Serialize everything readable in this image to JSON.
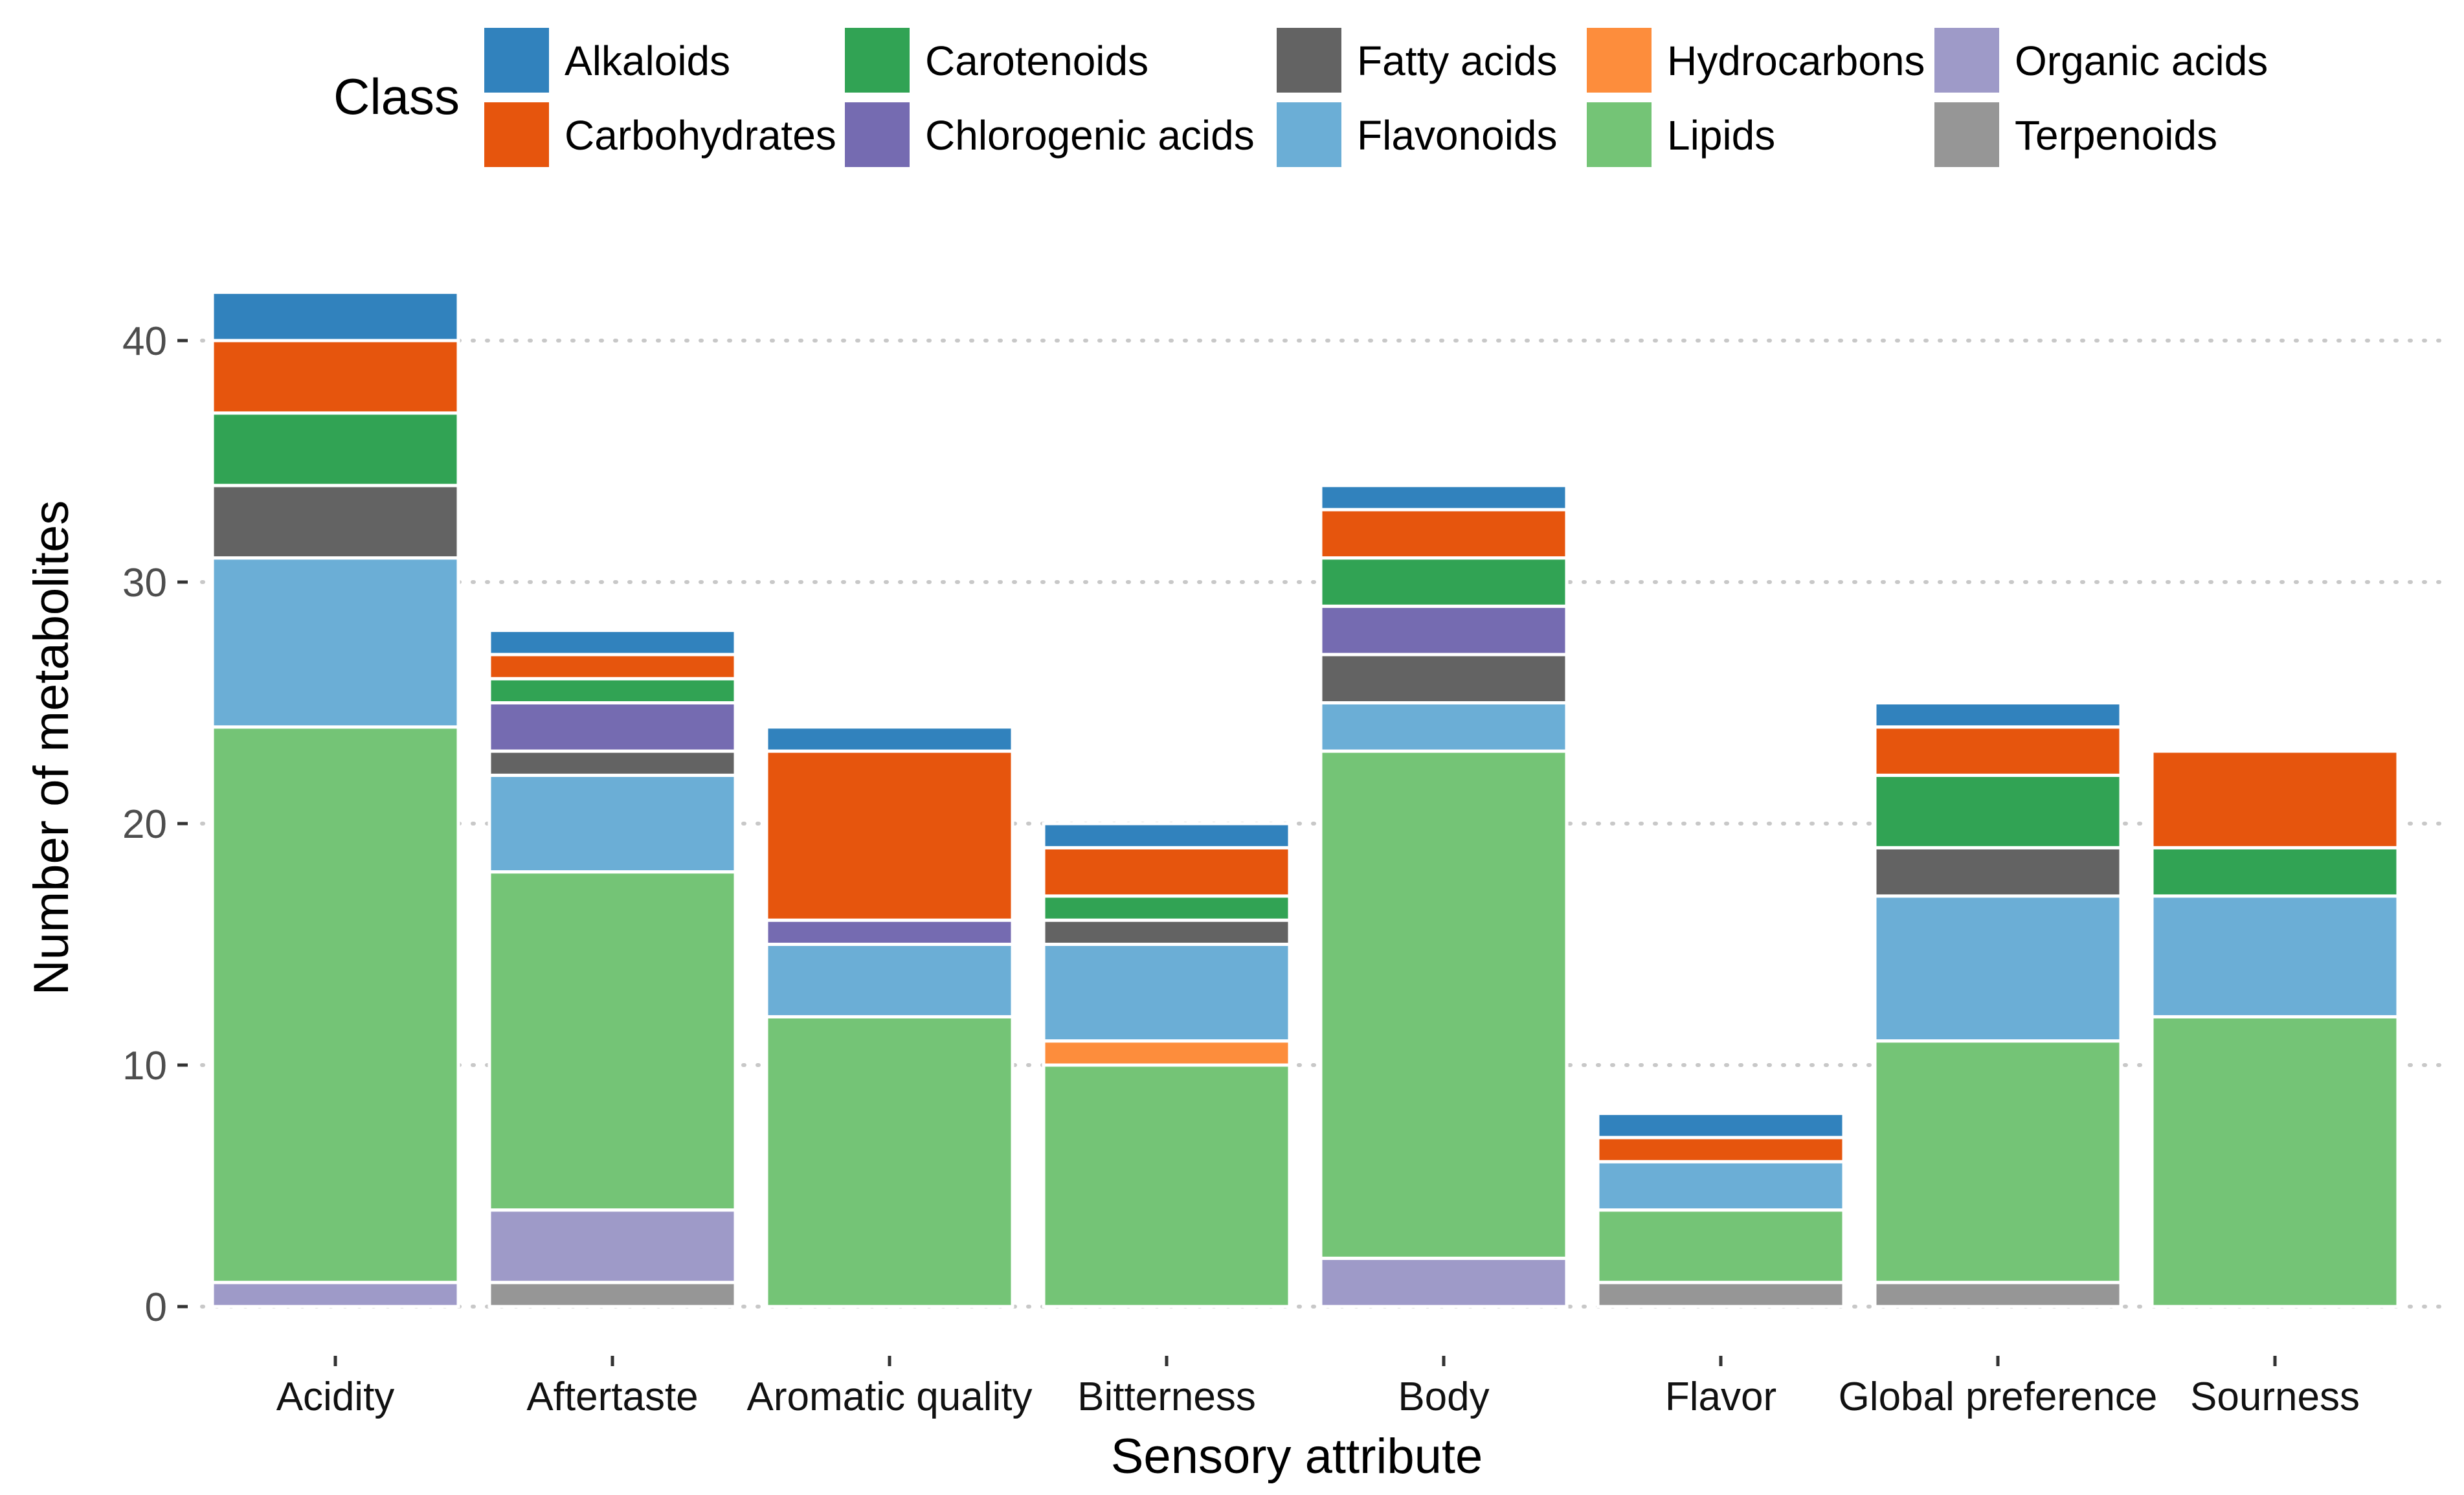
{
  "chart_data": {
    "type": "bar",
    "stacked": true,
    "title": "",
    "xlabel": "Sensory attribute",
    "ylabel": "Number of metabolites",
    "ylim": [
      0,
      42
    ],
    "yticks": [
      0,
      10,
      20,
      30,
      40
    ],
    "grid": "horizontal dotted",
    "legend": {
      "title": "Class",
      "placement": "top",
      "entries": [
        {
          "name": "Alkaloids",
          "color": "#3182bd"
        },
        {
          "name": "Carbohydrates",
          "color": "#e6550d"
        },
        {
          "name": "Carotenoids",
          "color": "#31a354"
        },
        {
          "name": "Chlorogenic acids",
          "color": "#756bb1"
        },
        {
          "name": "Fatty acids",
          "color": "#636363"
        },
        {
          "name": "Flavonoids",
          "color": "#6baed6"
        },
        {
          "name": "Hydrocarbons",
          "color": "#fd8d3c"
        },
        {
          "name": "Lipids",
          "color": "#74c476"
        },
        {
          "name": "Organic acids",
          "color": "#9e9ac8"
        },
        {
          "name": "Terpenoids",
          "color": "#969696"
        }
      ]
    },
    "categories": [
      "Acidity",
      "Aftertaste",
      "Aromatic quality",
      "Bitterness",
      "Body",
      "Flavor",
      "Global preference",
      "Sourness"
    ],
    "series": [
      {
        "name": "Terpenoids",
        "color": "#969696",
        "values": [
          0,
          1,
          0,
          0,
          0,
          1,
          1,
          0
        ]
      },
      {
        "name": "Organic acids",
        "color": "#9e9ac8",
        "values": [
          1,
          3,
          0,
          0,
          2,
          0,
          0,
          0
        ]
      },
      {
        "name": "Lipids",
        "color": "#74c476",
        "values": [
          23,
          14,
          12,
          10,
          21,
          3,
          10,
          12
        ]
      },
      {
        "name": "Hydrocarbons",
        "color": "#fd8d3c",
        "values": [
          0,
          0,
          0,
          1,
          0,
          0,
          0,
          0
        ]
      },
      {
        "name": "Flavonoids",
        "color": "#6baed6",
        "values": [
          7,
          4,
          3,
          4,
          2,
          2,
          6,
          5
        ]
      },
      {
        "name": "Fatty acids",
        "color": "#636363",
        "values": [
          3,
          1,
          0,
          1,
          2,
          0,
          2,
          0
        ]
      },
      {
        "name": "Chlorogenic acids",
        "color": "#756bb1",
        "values": [
          0,
          2,
          1,
          0,
          2,
          0,
          0,
          0
        ]
      },
      {
        "name": "Carotenoids",
        "color": "#31a354",
        "values": [
          3,
          1,
          0,
          1,
          2,
          0,
          3,
          2
        ]
      },
      {
        "name": "Carbohydrates",
        "color": "#e6550d",
        "values": [
          3,
          1,
          7,
          2,
          2,
          1,
          2,
          4
        ]
      },
      {
        "name": "Alkaloids",
        "color": "#3182bd",
        "values": [
          2,
          1,
          1,
          1,
          1,
          1,
          1,
          0
        ]
      }
    ]
  }
}
